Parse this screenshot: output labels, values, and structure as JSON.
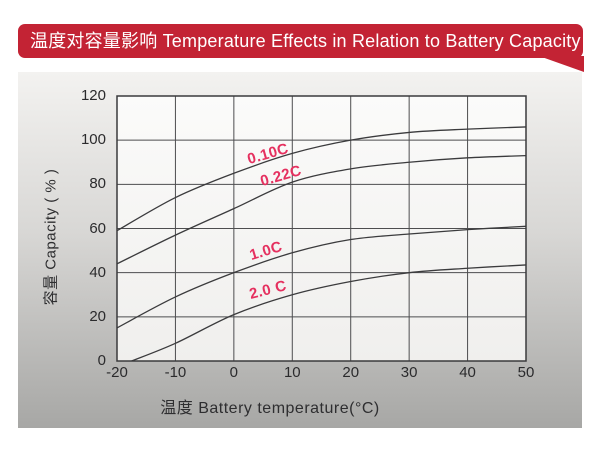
{
  "banner": {
    "title": "温度对容量影响 Temperature Effects in Relation to Battery Capacity",
    "bg_color": "#c32334"
  },
  "chart_data": {
    "type": "line",
    "title": "温度对容量影响 Temperature Effects in Relation to Battery Capacity",
    "xlabel": "温度  Battery temperature(°C)",
    "ylabel": "容量 Capacity ( % )",
    "xlim": [
      -20,
      50
    ],
    "ylim": [
      0,
      120
    ],
    "x_ticks": [
      -20,
      -10,
      0,
      10,
      20,
      30,
      40,
      50
    ],
    "y_ticks": [
      0,
      20,
      40,
      60,
      80,
      100,
      120
    ],
    "grid": true,
    "legend_position": "inline-curve-labels",
    "series": [
      {
        "name": "0.10C",
        "points": [
          [
            -20,
            59
          ],
          [
            -10,
            74
          ],
          [
            0,
            85
          ],
          [
            10,
            94
          ],
          [
            20,
            100
          ],
          [
            30,
            103.5
          ],
          [
            40,
            105
          ],
          [
            50,
            106
          ]
        ]
      },
      {
        "name": "0.22C",
        "points": [
          [
            -20,
            44
          ],
          [
            -10,
            57
          ],
          [
            0,
            69
          ],
          [
            10,
            81
          ],
          [
            20,
            87
          ],
          [
            30,
            90
          ],
          [
            40,
            92
          ],
          [
            50,
            93
          ]
        ]
      },
      {
        "name": "1.0C",
        "points": [
          [
            -20,
            15
          ],
          [
            -10,
            29
          ],
          [
            0,
            40
          ],
          [
            10,
            49
          ],
          [
            20,
            55
          ],
          [
            30,
            57.5
          ],
          [
            40,
            59.5
          ],
          [
            50,
            61
          ]
        ]
      },
      {
        "name": "2.0 C",
        "points": [
          [
            -17.5,
            0
          ],
          [
            -10,
            8
          ],
          [
            0,
            21
          ],
          [
            10,
            30
          ],
          [
            20,
            36
          ],
          [
            30,
            40
          ],
          [
            40,
            42
          ],
          [
            50,
            43.5
          ]
        ]
      }
    ],
    "colors": {
      "curve": "#3b3b3d",
      "grid": "#4d4d4f",
      "frame": "#3a3a3c",
      "series_label": "#e5305f",
      "tick_text": "#2b2b2d"
    }
  }
}
